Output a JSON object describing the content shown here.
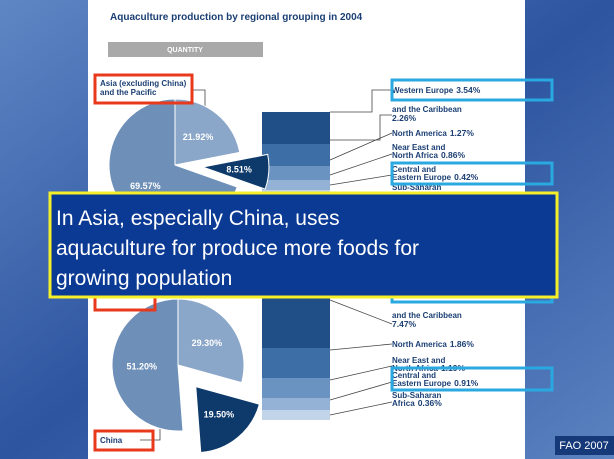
{
  "slide": {
    "title": "Aquaculture production by regional grouping in 2004",
    "section": "QUANTITY",
    "top_chart": {
      "callout": [
        "Asia (excluding China)",
        "and the Pacific"
      ],
      "slices": [
        {
          "value": 21.92,
          "label": "21.92%"
        },
        {
          "value": 8.51,
          "label": "8.51%"
        },
        {
          "value": 69.57,
          "label": "69.57%"
        }
      ],
      "regions": [
        {
          "lines": [
            "Western Europe"
          ],
          "share": "3.54%"
        },
        {
          "lines": [
            "and the Caribbean"
          ],
          "share": "2.26%"
        },
        {
          "lines": [
            "North America"
          ],
          "share": "1.27%"
        },
        {
          "lines": [
            "Near East and",
            "North Africa"
          ],
          "share": "0.86%"
        },
        {
          "lines": [
            "Central and",
            "Eastern Europe"
          ],
          "share": "0.42%"
        },
        {
          "lines": [
            "Sub-Saharan"
          ]
        }
      ]
    },
    "bottom_chart": {
      "callout": [
        "China"
      ],
      "slices": [
        {
          "value": 29.3,
          "label": "29.30%"
        },
        {
          "value": 19.5,
          "label": "19.50%"
        },
        {
          "value": 51.2,
          "label": "51.20%"
        }
      ],
      "regions": [
        {
          "lines": [
            "and the Caribbean"
          ],
          "share": "7.47%"
        },
        {
          "lines": [
            "North America"
          ],
          "share": "1.86%"
        },
        {
          "lines": [
            "Near East and",
            "North Africa"
          ],
          "share": "1.19%"
        },
        {
          "lines": [
            "Central and",
            "Eastern Europe"
          ],
          "share": "0.91%"
        },
        {
          "lines": [
            "Sub-Saharan",
            "Africa"
          ],
          "share": "0.36%"
        }
      ]
    },
    "overlay": [
      "In Asia, especially China, uses",
      "aquaculture for produce more foods for",
      "growing population"
    ],
    "source": "FAO 2007"
  }
}
